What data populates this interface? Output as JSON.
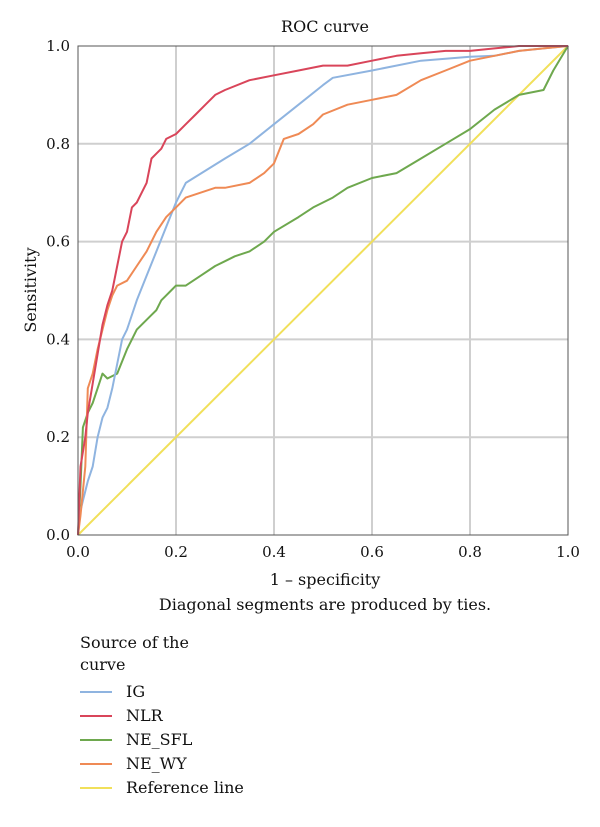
{
  "chart_data": {
    "type": "line",
    "title": "ROC curve",
    "xlabel": "1 – specificity",
    "ylabel": "Sensitivity",
    "note": "Diagonal segments are produced by ties.",
    "xlim": [
      0,
      1
    ],
    "ylim": [
      0,
      1
    ],
    "xticks": [
      "0.0",
      "0.2",
      "0.4",
      "0.6",
      "0.8",
      "1.0"
    ],
    "yticks": [
      "0.0",
      "0.2",
      "0.4",
      "0.6",
      "0.8",
      "1.0"
    ],
    "grid": true,
    "legend_title": "Source of the curve",
    "legend_position": "bottom-left",
    "series": [
      {
        "name": "IG",
        "color": "#8fb4e0",
        "x": [
          0.0,
          0.005,
          0.01,
          0.02,
          0.03,
          0.04,
          0.05,
          0.06,
          0.07,
          0.08,
          0.09,
          0.1,
          0.12,
          0.14,
          0.16,
          0.18,
          0.2,
          0.22,
          0.3,
          0.35,
          0.4,
          0.45,
          0.5,
          0.52,
          0.6,
          0.7,
          0.8,
          0.85,
          0.9,
          0.95,
          1.0
        ],
        "y": [
          0.0,
          0.05,
          0.07,
          0.11,
          0.14,
          0.2,
          0.24,
          0.26,
          0.3,
          0.35,
          0.4,
          0.42,
          0.48,
          0.53,
          0.58,
          0.63,
          0.68,
          0.72,
          0.77,
          0.8,
          0.84,
          0.88,
          0.92,
          0.935,
          0.95,
          0.97,
          0.978,
          0.98,
          0.99,
          0.995,
          1.0
        ]
      },
      {
        "name": "NLR",
        "color": "#d9455a",
        "x": [
          0.0,
          0.005,
          0.01,
          0.015,
          0.02,
          0.03,
          0.04,
          0.05,
          0.06,
          0.07,
          0.08,
          0.09,
          0.1,
          0.11,
          0.12,
          0.13,
          0.14,
          0.15,
          0.16,
          0.17,
          0.18,
          0.2,
          0.22,
          0.24,
          0.26,
          0.28,
          0.3,
          0.35,
          0.4,
          0.45,
          0.5,
          0.55,
          0.6,
          0.65,
          0.7,
          0.75,
          0.8,
          0.85,
          0.9,
          0.95,
          1.0
        ],
        "y": [
          0.0,
          0.14,
          0.17,
          0.2,
          0.25,
          0.31,
          0.37,
          0.43,
          0.47,
          0.5,
          0.55,
          0.6,
          0.62,
          0.67,
          0.68,
          0.7,
          0.72,
          0.77,
          0.78,
          0.79,
          0.81,
          0.82,
          0.84,
          0.86,
          0.88,
          0.9,
          0.91,
          0.93,
          0.94,
          0.95,
          0.96,
          0.96,
          0.97,
          0.98,
          0.985,
          0.99,
          0.99,
          0.995,
          1.0,
          1.0,
          1.0
        ]
      },
      {
        "name": "NE_SFL",
        "color": "#6ea84e",
        "x": [
          0.0,
          0.005,
          0.01,
          0.02,
          0.03,
          0.04,
          0.05,
          0.06,
          0.08,
          0.1,
          0.11,
          0.12,
          0.13,
          0.15,
          0.16,
          0.17,
          0.18,
          0.19,
          0.2,
          0.22,
          0.25,
          0.28,
          0.3,
          0.32,
          0.35,
          0.38,
          0.4,
          0.45,
          0.48,
          0.52,
          0.55,
          0.6,
          0.65,
          0.7,
          0.75,
          0.8,
          0.85,
          0.9,
          0.95,
          0.97,
          1.0
        ],
        "y": [
          0.0,
          0.1,
          0.22,
          0.25,
          0.27,
          0.3,
          0.33,
          0.32,
          0.33,
          0.38,
          0.4,
          0.42,
          0.43,
          0.45,
          0.46,
          0.48,
          0.49,
          0.5,
          0.51,
          0.51,
          0.53,
          0.55,
          0.56,
          0.57,
          0.58,
          0.6,
          0.62,
          0.65,
          0.67,
          0.69,
          0.71,
          0.73,
          0.74,
          0.77,
          0.8,
          0.83,
          0.87,
          0.9,
          0.91,
          0.95,
          1.0
        ]
      },
      {
        "name": "NE_WY",
        "color": "#ef8a55",
        "x": [
          0.0,
          0.005,
          0.01,
          0.015,
          0.02,
          0.03,
          0.04,
          0.05,
          0.06,
          0.07,
          0.08,
          0.1,
          0.12,
          0.14,
          0.16,
          0.18,
          0.2,
          0.22,
          0.25,
          0.28,
          0.3,
          0.35,
          0.38,
          0.4,
          0.42,
          0.45,
          0.48,
          0.5,
          0.55,
          0.6,
          0.65,
          0.7,
          0.75,
          0.8,
          0.85,
          0.9,
          0.95,
          1.0
        ],
        "y": [
          0.0,
          0.04,
          0.09,
          0.14,
          0.3,
          0.33,
          0.38,
          0.42,
          0.46,
          0.49,
          0.51,
          0.52,
          0.55,
          0.58,
          0.62,
          0.65,
          0.67,
          0.69,
          0.7,
          0.71,
          0.71,
          0.72,
          0.74,
          0.76,
          0.81,
          0.82,
          0.84,
          0.86,
          0.88,
          0.89,
          0.9,
          0.93,
          0.95,
          0.97,
          0.98,
          0.99,
          0.995,
          1.0
        ]
      },
      {
        "name": "Reference line",
        "color": "#f1e05a",
        "x": [
          0.0,
          1.0
        ],
        "y": [
          0.0,
          1.0
        ]
      }
    ]
  }
}
